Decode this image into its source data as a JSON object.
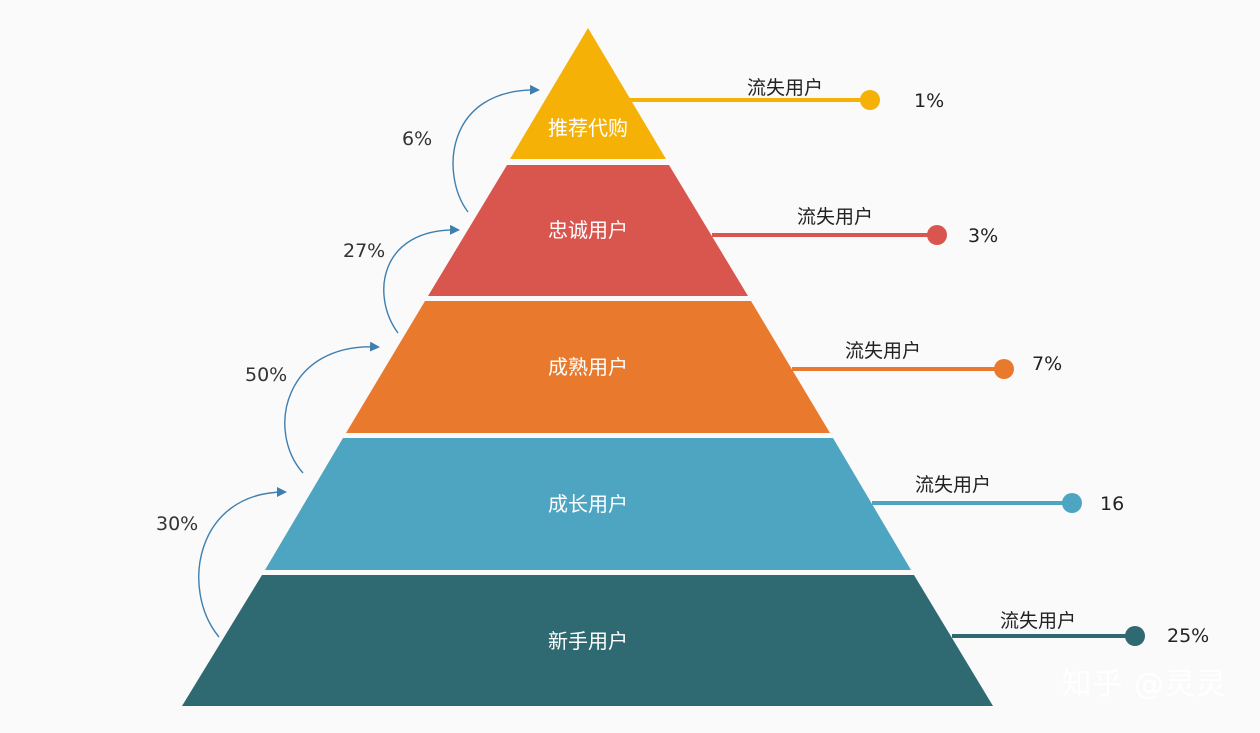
{
  "layers": [
    {
      "label": "推荐代购",
      "color": "#f5b106",
      "churn_label": "流失用户",
      "churn_value": "1%"
    },
    {
      "label": "忠诚用户",
      "color": "#d9564f",
      "churn_label": "流失用户",
      "churn_value": "3%"
    },
    {
      "label": "成熟用户",
      "color": "#e97a2d",
      "churn_label": "流失用户",
      "churn_value": "7%"
    },
    {
      "label": "成长用户",
      "color": "#4ea5c1",
      "churn_label": "流失用户",
      "churn_value": "16"
    },
    {
      "label": "新手用户",
      "color": "#2f6a72",
      "churn_label": "流失用户",
      "churn_value": "25%"
    }
  ],
  "transitions": [
    {
      "value": "6%"
    },
    {
      "value": "27%"
    },
    {
      "value": "50%"
    },
    {
      "value": "30%"
    }
  ],
  "arrow_color": "#3d7fb0",
  "watermark": "知乎 @灵灵"
}
